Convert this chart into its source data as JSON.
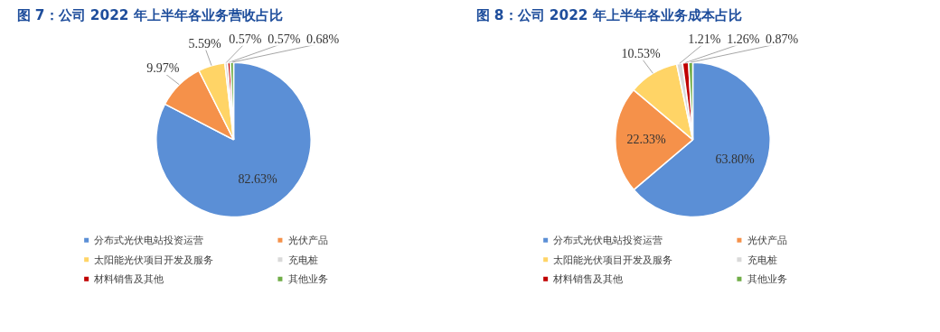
{
  "chart_data": [
    {
      "type": "pie",
      "title": "图 7：公司 2022 年上半年各业务营收占比",
      "categories": [
        "分布式光伏电站投资运营",
        "光伏产品",
        "太阳能光伏项目开发及服务",
        "充电桩",
        "材料销售及其他",
        "其他业务"
      ],
      "values": [
        82.63,
        9.97,
        5.59,
        0.57,
        0.57,
        0.68
      ],
      "value_labels": [
        "82.63%",
        "9.97%",
        "5.59%",
        "0.57%",
        "0.57%",
        "0.68%"
      ],
      "colors": [
        "#5b8fd6",
        "#f5914a",
        "#ffd466",
        "#d9d9d9",
        "#c00000",
        "#70ad47"
      ],
      "legend": "bottom"
    },
    {
      "type": "pie",
      "title": "图 8：公司 2022 年上半年各业务成本占比",
      "categories": [
        "分布式光伏电站投资运营",
        "光伏产品",
        "太阳能光伏项目开发及服务",
        "充电桩",
        "材料销售及其他",
        "其他业务"
      ],
      "values": [
        63.8,
        22.33,
        10.53,
        1.21,
        1.26,
        0.87
      ],
      "value_labels": [
        "63.80%",
        "22.33%",
        "10.53%",
        "1.21%",
        "1.26%",
        "0.87%"
      ],
      "colors": [
        "#5b8fd6",
        "#f5914a",
        "#ffd466",
        "#d9d9d9",
        "#c00000",
        "#70ad47"
      ],
      "legend": "bottom"
    }
  ]
}
